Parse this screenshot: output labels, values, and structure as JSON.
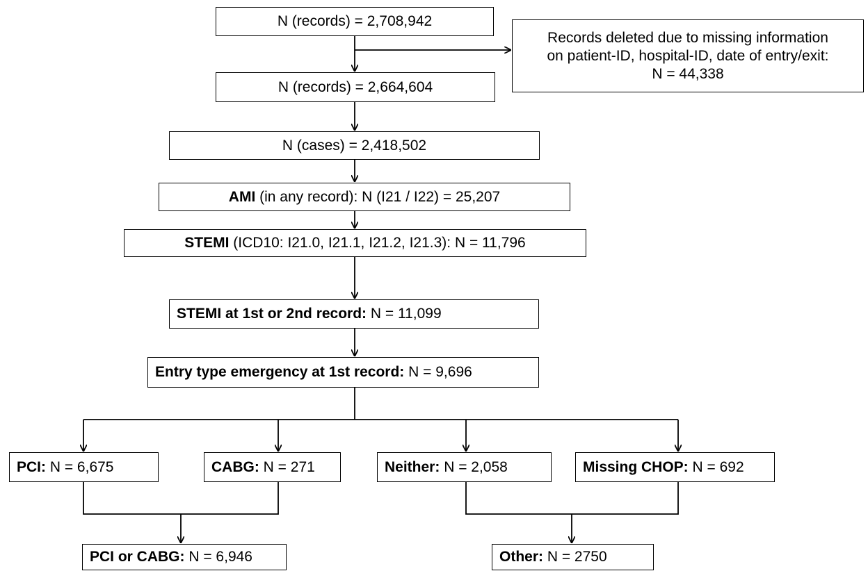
{
  "nodes": [
    {
      "text": "N (records) = 2,708,942"
    },
    {
      "text": "N (records) = 2,664,604"
    },
    {
      "text": "N (cases) = 2,418,502"
    },
    {
      "bold": "AMI",
      "text": " (in any record): N (I21 / I22) = 25,207"
    },
    {
      "bold": "STEMI",
      "text": " (ICD10: I21.0, I21.1, I21.2, I21.3): N = 11,796"
    },
    {
      "bold": "STEMI at 1st or 2nd record:",
      "text": " N = 11,099"
    },
    {
      "bold": "Entry type emergency at 1st record:",
      "text": " N = 9,696"
    },
    {
      "bold": "PCI:",
      "text": " N = 6,675"
    },
    {
      "bold": "CABG:",
      "text": " N = 271"
    },
    {
      "bold": "Neither:",
      "text": " N = 2,058"
    },
    {
      "bold": "Missing CHOP:",
      "text": " N = 692"
    },
    {
      "bold": "PCI or CABG:",
      "text": " N = 6,946"
    },
    {
      "bold": "Other:",
      "text": " N = 2750"
    }
  ],
  "side_note": {
    "lines": [
      "Records deleted due to missing information",
      "on patient-ID, hospital-ID, date of entry/exit:",
      "N = 44,338"
    ]
  }
}
